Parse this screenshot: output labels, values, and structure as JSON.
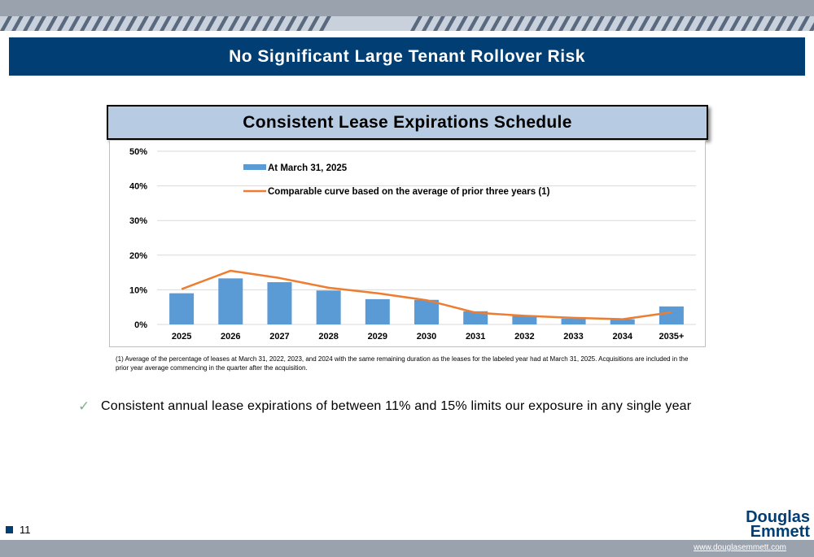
{
  "header": {
    "title": "No Significant Large Tenant Rollover Risk"
  },
  "chart_header": {
    "title": "Consistent Lease Expirations Schedule"
  },
  "chart_data": {
    "type": "bar",
    "categories": [
      "2025",
      "2026",
      "2027",
      "2028",
      "2029",
      "2030",
      "2031",
      "2032",
      "2033",
      "2034",
      "2035+"
    ],
    "series": [
      {
        "name": "At March 31, 2025",
        "type": "bar",
        "color": "#5b9bd5",
        "values": [
          9.0,
          13.3,
          12.2,
          9.8,
          7.3,
          7.1,
          3.8,
          2.6,
          1.7,
          1.5,
          5.2
        ]
      },
      {
        "name": "Comparable curve based on the average of prior three years (1)",
        "type": "line",
        "color": "#ed7d31",
        "values": [
          10.2,
          15.5,
          13.4,
          10.6,
          9.0,
          7.0,
          3.4,
          2.5,
          1.9,
          1.5,
          3.5
        ]
      }
    ],
    "y_ticks": [
      "0%",
      "10%",
      "20%",
      "30%",
      "40%",
      "50%"
    ],
    "ylim": [
      0,
      50
    ],
    "y_unit": "%",
    "grid": true,
    "legend_position": "top-left"
  },
  "footnote": "(1) Average of the percentage of leases at March 31, 2022, 2023, and 2024 with the same remaining duration as the leases for the labeled year had at March 31, 2025. Acquisitions are included in the prior year average commencing in the quarter after the acquisition.",
  "bullet": {
    "text": "Consistent annual lease expirations of between 11% and 15% limits our exposure in any single year",
    "icon": "check-icon"
  },
  "footer": {
    "page_number": "11",
    "logo_line1": "Douglas",
    "logo_line2": "Emmett",
    "website": "www.douglasemmett.com"
  },
  "colors": {
    "brand_navy": "#003e73",
    "header_light_blue": "#b7cbe3",
    "gray_bar": "#9aa3ad",
    "bar_blue": "#5b9bd5",
    "line_orange": "#ed7d31"
  }
}
